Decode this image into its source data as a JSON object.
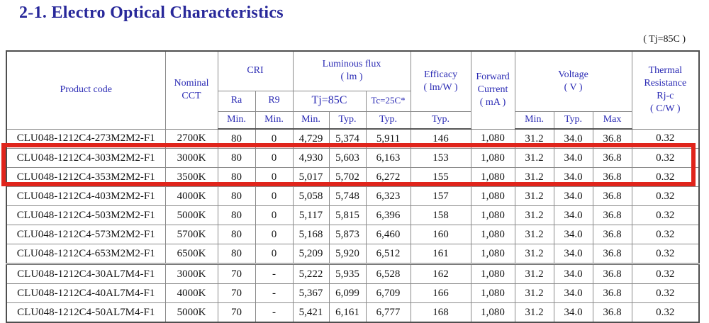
{
  "page": {
    "title": "2-1. Electro Optical Characteristics",
    "condition_note": "( Tj=85C )"
  },
  "colors": {
    "title_text": "#28289a",
    "header_text": "#2a2ab4",
    "body_text": "#141414",
    "grid_line": "#8a8a8a",
    "highlight_box": "#e0241b"
  },
  "table": {
    "header": {
      "product_code": "Product code",
      "nominal_cct": "Nominal\nCCT",
      "cri": "CRI",
      "ra": "Ra",
      "r9": "R9",
      "ra_min": "Min.",
      "r9_min": "Min.",
      "luminous_flux": "Luminous flux\n( lm )",
      "tj_85c": "Tj=85C",
      "tc_25c": "Tc=25C*",
      "lf_min": "Min.",
      "lf_typ": "Typ.",
      "tc_typ": "Typ.",
      "efficacy": "Efficacy\n( lm/W )",
      "efficacy_typ": "Typ.",
      "forward_current": "Forward\nCurrent\n( mA )",
      "voltage": "Voltage\n( V )",
      "v_min": "Min.",
      "v_typ": "Typ.",
      "v_max": "Max",
      "thermal_resistance": "Thermal\nResistance\nRj-c\n( C/W )"
    },
    "rows": [
      {
        "highlighted": false,
        "group_end": false,
        "cells": [
          "CLU048-1212C4-273M2M2-F1",
          "2700K",
          "80",
          "0",
          "4,729",
          "5,374",
          "5,911",
          "146",
          "1,080",
          "31.2",
          "34.0",
          "36.8",
          "0.32"
        ]
      },
      {
        "highlighted": true,
        "group_end": false,
        "cells": [
          "CLU048-1212C4-303M2M2-F1",
          "3000K",
          "80",
          "0",
          "4,930",
          "5,603",
          "6,163",
          "153",
          "1,080",
          "31.2",
          "34.0",
          "36.8",
          "0.32"
        ]
      },
      {
        "highlighted": true,
        "group_end": false,
        "cells": [
          "CLU048-1212C4-353M2M2-F1",
          "3500K",
          "80",
          "0",
          "5,017",
          "5,702",
          "6,272",
          "155",
          "1,080",
          "31.2",
          "34.0",
          "36.8",
          "0.32"
        ]
      },
      {
        "highlighted": false,
        "group_end": false,
        "cells": [
          "CLU048-1212C4-403M2M2-F1",
          "4000K",
          "80",
          "0",
          "5,058",
          "5,748",
          "6,323",
          "157",
          "1,080",
          "31.2",
          "34.0",
          "36.8",
          "0.32"
        ]
      },
      {
        "highlighted": false,
        "group_end": false,
        "cells": [
          "CLU048-1212C4-503M2M2-F1",
          "5000K",
          "80",
          "0",
          "5,117",
          "5,815",
          "6,396",
          "158",
          "1,080",
          "31.2",
          "34.0",
          "36.8",
          "0.32"
        ]
      },
      {
        "highlighted": false,
        "group_end": false,
        "cells": [
          "CLU048-1212C4-573M2M2-F1",
          "5700K",
          "80",
          "0",
          "5,168",
          "5,873",
          "6,460",
          "160",
          "1,080",
          "31.2",
          "34.0",
          "36.8",
          "0.32"
        ]
      },
      {
        "highlighted": false,
        "group_end": true,
        "cells": [
          "CLU048-1212C4-653M2M2-F1",
          "6500K",
          "80",
          "0",
          "5,209",
          "5,920",
          "6,512",
          "161",
          "1,080",
          "31.2",
          "34.0",
          "36.8",
          "0.32"
        ]
      },
      {
        "highlighted": false,
        "group_end": false,
        "cells": [
          "CLU048-1212C4-30AL7M4-F1",
          "3000K",
          "70",
          "-",
          "5,222",
          "5,935",
          "6,528",
          "162",
          "1,080",
          "31.2",
          "34.0",
          "36.8",
          "0.32"
        ]
      },
      {
        "highlighted": false,
        "group_end": false,
        "cells": [
          "CLU048-1212C4-40AL7M4-F1",
          "4000K",
          "70",
          "-",
          "5,367",
          "6,099",
          "6,709",
          "166",
          "1,080",
          "31.2",
          "34.0",
          "36.8",
          "0.32"
        ]
      },
      {
        "highlighted": false,
        "group_end": false,
        "cells": [
          "CLU048-1212C4-50AL7M4-F1",
          "5000K",
          "70",
          "-",
          "5,421",
          "6,161",
          "6,777",
          "168",
          "1,080",
          "31.2",
          "34.0",
          "36.8",
          "0.32"
        ]
      }
    ]
  }
}
